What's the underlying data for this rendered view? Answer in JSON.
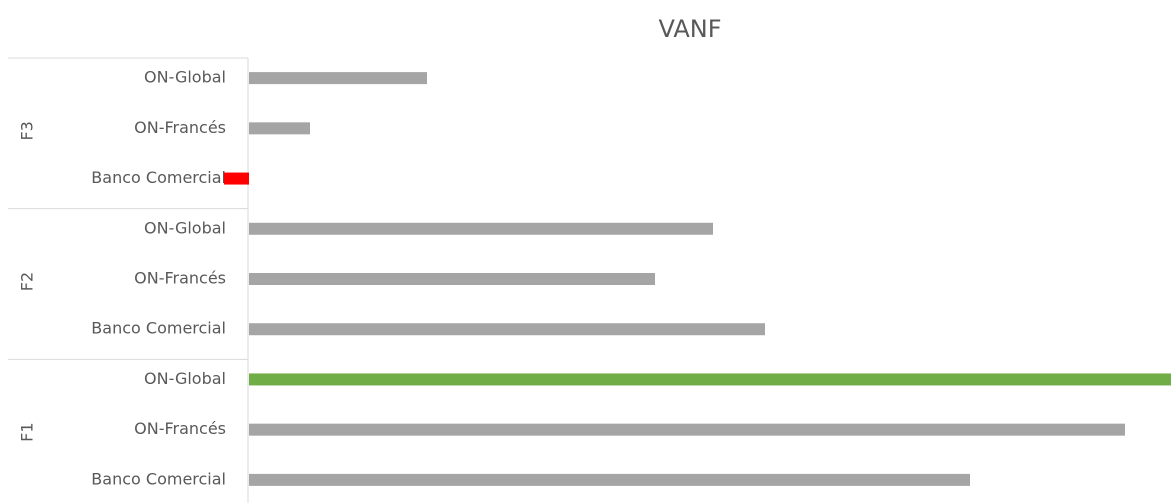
{
  "chart_data": {
    "type": "bar",
    "orientation": "horizontal",
    "title": "VANF",
    "group_labels": [
      "F3",
      "F2",
      "F1"
    ],
    "categories": [
      "ON-Global",
      "ON-Francés",
      "Banco Comercial",
      "ON-Global",
      "ON-Francés",
      "Banco Comercial",
      "ON-Global",
      "ON-Francés",
      "Banco Comercial"
    ],
    "values": [
      178,
      61,
      -25,
      464,
      406,
      516,
      922,
      876,
      721
    ],
    "colors": [
      "#a5a5a5",
      "#a5a5a5",
      "#ff0000",
      "#a5a5a5",
      "#a5a5a5",
      "#a5a5a5",
      "#70ad47",
      "#a5a5a5",
      "#a5a5a5"
    ],
    "xlim": [
      -25,
      922
    ]
  }
}
